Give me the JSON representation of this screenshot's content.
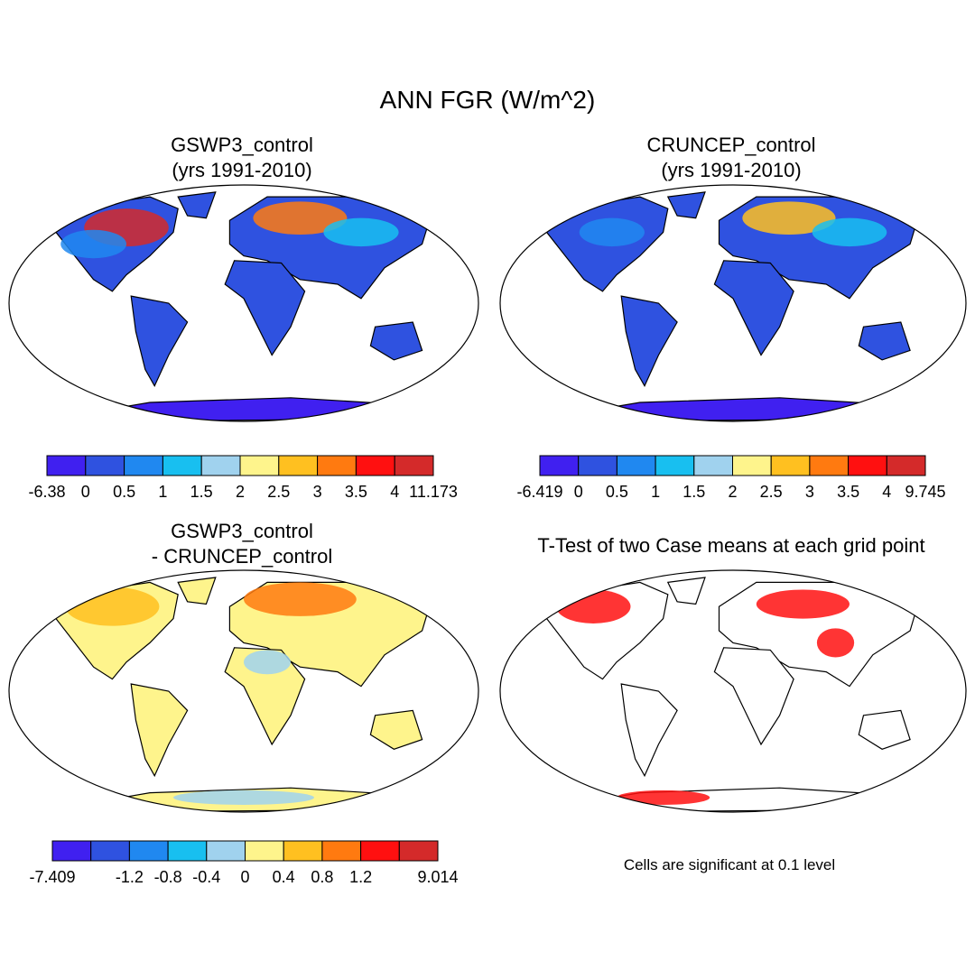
{
  "title": "ANN FGR (W/m^2)",
  "panels": [
    {
      "title_lines": [
        "GSWP3_control",
        "(yrs 1991-2010)"
      ],
      "colorbar": {
        "labels": [
          "-6.38",
          "0",
          "0.5",
          "1",
          "1.5",
          "2",
          "2.5",
          "3",
          "3.5",
          "4",
          "11.173"
        ],
        "colors": [
          "#4020f0",
          "#2f52e0",
          "#2088f0",
          "#18bff0",
          "#a0d2ee",
          "#fef48c",
          "#ffc020",
          "#ff7a10",
          "#ff1010",
          "#d42a2a"
        ]
      }
    },
    {
      "title_lines": [
        "CRUNCEP_control",
        "(yrs 1991-2010)"
      ],
      "colorbar": {
        "labels": [
          "-6.419",
          "0",
          "0.5",
          "1",
          "1.5",
          "2",
          "2.5",
          "3",
          "3.5",
          "4",
          "9.745"
        ],
        "colors": [
          "#4020f0",
          "#2f52e0",
          "#2088f0",
          "#18bff0",
          "#a0d2ee",
          "#fef48c",
          "#ffc020",
          "#ff7a10",
          "#ff1010",
          "#d42a2a"
        ]
      }
    },
    {
      "title_lines": [
        "GSWP3_control",
        "- CRUNCEP_control"
      ],
      "colorbar": {
        "labels": [
          "-7.409",
          null,
          "-1.2",
          "-0.8",
          "-0.4",
          "0",
          "0.4",
          "0.8",
          "1.2",
          null,
          "9.014"
        ],
        "colors": [
          "#4020f0",
          "#2f52e0",
          "#2088f0",
          "#18bff0",
          "#a0d2ee",
          "#fef48c",
          "#ffc020",
          "#ff7a10",
          "#ff1010",
          "#d42a2a"
        ]
      }
    },
    {
      "title_lines": [
        "T-Test of two Case means at each grid point"
      ],
      "note": "Cells are significant at 0.1 level"
    }
  ]
}
